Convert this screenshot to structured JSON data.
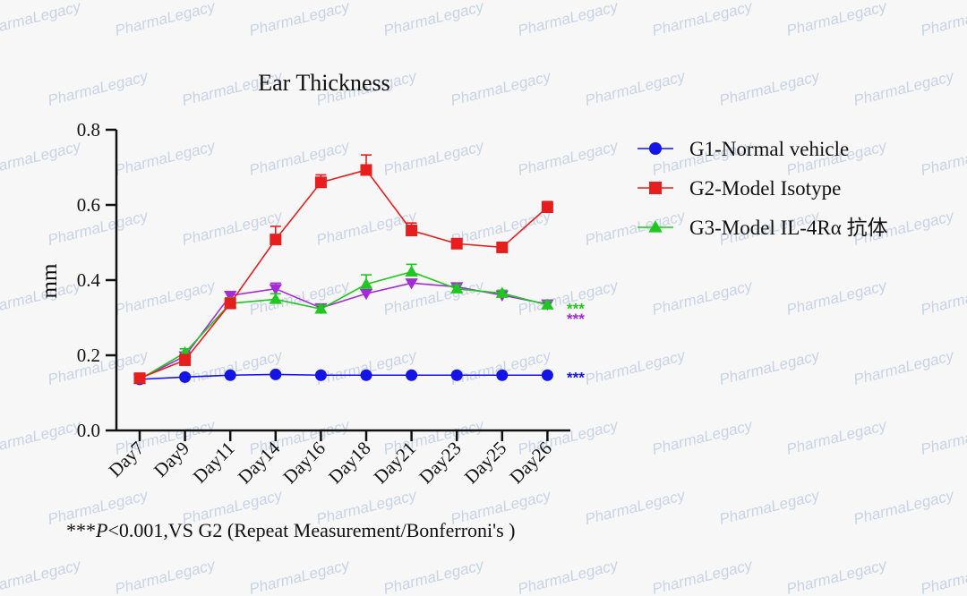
{
  "chart_data": {
    "type": "line",
    "title": "Ear Thickness",
    "ylabel": "mm",
    "xlabel": "",
    "ylim": [
      0,
      0.8
    ],
    "yticks": [
      "0.0",
      "0.2",
      "0.4",
      "0.6",
      "0.8"
    ],
    "categories": [
      "Day7",
      "Day9",
      "Day11",
      "Day14",
      "Day16",
      "Day18",
      "Day21",
      "Day23",
      "Day25",
      "Day26"
    ],
    "series": [
      {
        "name": "G1-Normal vehicle",
        "color": "#1414e6",
        "marker": "circle",
        "values": [
          0.136,
          0.142,
          0.147,
          0.149,
          0.147,
          0.147,
          0.147,
          0.147,
          0.147,
          0.147
        ],
        "errors": [
          0.004,
          0.003,
          0.004,
          0.004,
          0.003,
          0.003,
          0.003,
          0.003,
          0.003,
          0.003
        ]
      },
      {
        "name": "G2-Model Isotype",
        "color": "#e61e1e",
        "marker": "square",
        "values": [
          0.139,
          0.187,
          0.338,
          0.508,
          0.66,
          0.693,
          0.532,
          0.497,
          0.487,
          0.594
        ],
        "errors": [
          0.005,
          0.015,
          0.013,
          0.035,
          0.02,
          0.04,
          0.02,
          0.01,
          0.01,
          0.015
        ]
      },
      {
        "name": "G3-Model   IL-4Rα 抗体",
        "color": "#1ec81e",
        "marker": "triangle",
        "values": [
          0.136,
          0.207,
          0.338,
          0.349,
          0.323,
          0.389,
          0.422,
          0.377,
          0.365,
          0.334
        ],
        "errors": [
          0.004,
          0.01,
          0.015,
          0.015,
          0.01,
          0.025,
          0.02,
          0.01,
          0.008,
          0.01
        ]
      },
      {
        "name": "",
        "color": "#a52ad8",
        "marker": "triangle-down",
        "values": [
          0.137,
          0.198,
          0.359,
          0.377,
          0.326,
          0.364,
          0.392,
          0.382,
          0.36,
          0.336
        ],
        "errors": [
          0.004,
          0.01,
          0.01,
          0.015,
          0.01,
          0.01,
          0.01,
          0.01,
          0.01,
          0.01
        ]
      }
    ],
    "significance": [
      {
        "label": "***",
        "color": "#1ec81e"
      },
      {
        "label": "***",
        "color": "#a52ad8"
      },
      {
        "label": "***",
        "color": "#1414e6"
      }
    ],
    "footnote": {
      "prefix": "***",
      "italic": "P",
      "rest": "<0.001,VS G2 (Repeat Measurement/Bonferroni's )"
    },
    "legend_position": "right",
    "grid": false
  },
  "watermark": "PharmaLegacy"
}
